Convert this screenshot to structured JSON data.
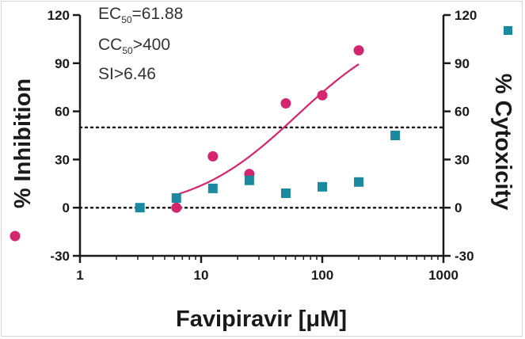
{
  "chart_data": {
    "type": "scatter",
    "xlabel": "Favipiravir [μM]",
    "x_scale": "log",
    "xlim": [
      1,
      1000
    ],
    "x_ticks": [
      "1",
      "10",
      "100",
      "1000"
    ],
    "ylabel_left": "% Inhibition",
    "ylabel_right": "% Cytoxicity",
    "ylim": [
      -30,
      120
    ],
    "y_ticks": [
      "-30",
      "0",
      "30",
      "60",
      "90",
      "120"
    ],
    "annotations": {
      "ec_prefix": "EC",
      "ec_sub": "50",
      "ec_value": "=61.88",
      "cc_prefix": "CC",
      "cc_sub": "50",
      "cc_value": ">400",
      "si": "SI>6.46"
    },
    "reference_lines_y": [
      50,
      0
    ],
    "series": [
      {
        "axis": "left",
        "marker": "circle",
        "color": "#d4266e",
        "points": [
          {
            "x": 6.25,
            "y": 0
          },
          {
            "x": 12.5,
            "y": 32
          },
          {
            "x": 25,
            "y": 21
          },
          {
            "x": 50,
            "y": 65
          },
          {
            "x": 100,
            "y": 70
          },
          {
            "x": 200,
            "y": 98
          }
        ],
        "fit": {
          "bottom": -3,
          "top": 118,
          "ec50": 61.88,
          "hill": 1.0,
          "x_range": [
            6.25,
            200
          ]
        }
      },
      {
        "axis": "right",
        "marker": "square",
        "color": "#1b8aa0",
        "points": [
          {
            "x": 3.125,
            "y": 0
          },
          {
            "x": 6.25,
            "y": 6
          },
          {
            "x": 12.5,
            "y": 12
          },
          {
            "x": 25,
            "y": 17
          },
          {
            "x": 50,
            "y": 9
          },
          {
            "x": 100,
            "y": 13
          },
          {
            "x": 200,
            "y": 16
          },
          {
            "x": 400,
            "y": 45
          }
        ]
      }
    ],
    "colors": {
      "axis": "#1a1a1a",
      "inhibition": "#d4266e",
      "cytotoxicity": "#1b8aa0"
    }
  }
}
